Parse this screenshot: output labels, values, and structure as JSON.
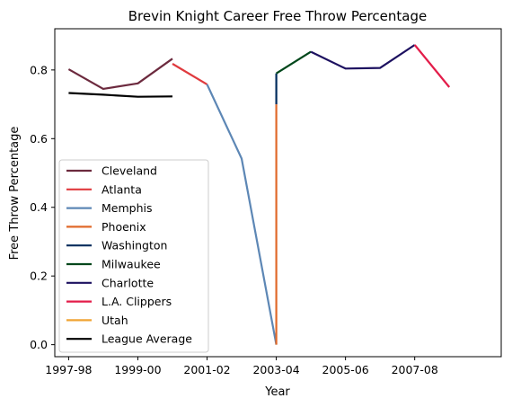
{
  "chart_data": {
    "type": "line",
    "title": "Brevin Knight Career Free Throw Percentage",
    "xlabel": "Year",
    "ylabel": "Free Throw Percentage",
    "x_tick_labels": [
      "1997-98",
      "1999-00",
      "2001-02",
      "2003-04",
      "2005-06",
      "2007-08"
    ],
    "y_ticks": [
      0.0,
      0.2,
      0.4,
      0.6,
      0.8
    ],
    "y_tick_labels": [
      "0.0",
      "0.2",
      "0.4",
      "0.6",
      "0.8"
    ],
    "xlim": [
      "1997-98",
      "2009-10"
    ],
    "ylim": [
      0.0,
      0.92
    ],
    "grid": false,
    "legend_position": "lower-left",
    "series": [
      {
        "name": "Cleveland",
        "color": "#6c2a3e",
        "points": [
          [
            "1997-98",
            0.802
          ],
          [
            "1998-99",
            0.745
          ],
          [
            "1999-00",
            0.761
          ],
          [
            "2000-01",
            0.833
          ]
        ]
      },
      {
        "name": "Atlanta",
        "color": "#e03a3e",
        "points": [
          [
            "2000-01",
            0.818
          ],
          [
            "2001-02",
            0.758
          ]
        ]
      },
      {
        "name": "Memphis",
        "color": "#5d87b5",
        "points": [
          [
            "2001-02",
            0.758
          ],
          [
            "2002-03",
            0.542
          ],
          [
            "2003-04",
            0.0
          ]
        ]
      },
      {
        "name": "Phoenix",
        "color": "#e06a2a",
        "points": [
          [
            "2003-04",
            0.0
          ],
          [
            "2003-04",
            0.7
          ]
        ]
      },
      {
        "name": "Washington",
        "color": "#002b5c",
        "points": [
          [
            "2003-04",
            0.7
          ],
          [
            "2003-04",
            0.79
          ]
        ]
      },
      {
        "name": "Milwaukee",
        "color": "#00471b",
        "points": [
          [
            "2003-04",
            0.79
          ],
          [
            "2004-05",
            0.853
          ]
        ]
      },
      {
        "name": "Charlotte",
        "color": "#1d1160",
        "points": [
          [
            "2004-05",
            0.853
          ],
          [
            "2005-06",
            0.804
          ],
          [
            "2006-07",
            0.806
          ],
          [
            "2007-08",
            0.873
          ]
        ]
      },
      {
        "name": "L.A. Clippers",
        "color": "#e31d4a",
        "points": [
          [
            "2007-08",
            0.873
          ],
          [
            "2008-09",
            0.75
          ]
        ]
      },
      {
        "name": "Utah",
        "color": "#f0a434",
        "points": []
      },
      {
        "name": "League Average",
        "color": "#000000",
        "points": [
          [
            "1997-98",
            0.733
          ],
          [
            "1998-99",
            0.728
          ],
          [
            "1999-00",
            0.722
          ],
          [
            "2000-01",
            0.723
          ]
        ]
      }
    ]
  }
}
